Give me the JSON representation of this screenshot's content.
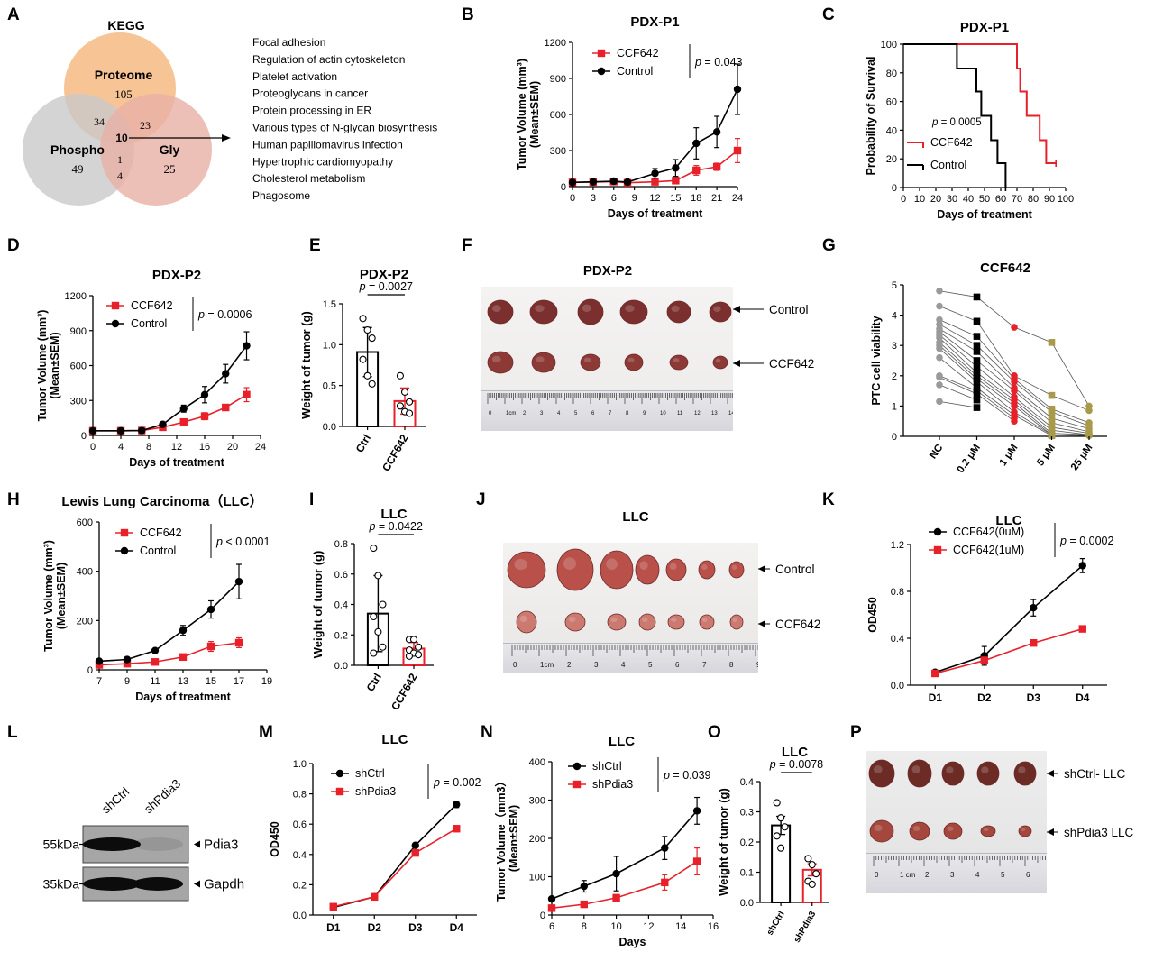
{
  "panels": {
    "A": {
      "letter": "A",
      "title": "KEGG",
      "venn": {
        "sets": [
          {
            "label": "Proteome",
            "count": "105",
            "color": "#f5b57a"
          },
          {
            "label": "Phospho",
            "count": "49",
            "color": "#c9c9c9"
          },
          {
            "label": "Gly",
            "count": "25",
            "color": "#e8b0a5"
          }
        ],
        "overlaps": {
          "proteome_phospho": "34",
          "proteome_gly": "23",
          "all": "10",
          "phospho_gly_top": "1",
          "phospho_gly_bottom": "4"
        }
      },
      "pathways": [
        "Focal adhesion",
        "Regulation of actin cytoskeleton",
        "Platelet activation",
        "Proteoglycans in cancer",
        "Protein processing in ER",
        "Various types of N-glycan biosynthesis",
        "Human papillomavirus infection",
        "Hypertrophic cardiomyopathy",
        "Cholesterol metabolism",
        "Phagosome"
      ]
    },
    "B": {
      "letter": "B"
    },
    "C": {
      "letter": "C"
    },
    "D": {
      "letter": "D"
    },
    "E": {
      "letter": "E"
    },
    "F": {
      "letter": "F",
      "title": "PDX-P2",
      "row_labels": [
        "Control",
        "CCF642"
      ],
      "ruler_labels": [
        "0",
        "1cm",
        "2",
        "3",
        "4",
        "5",
        "6",
        "7",
        "8",
        "9",
        "10",
        "11",
        "12",
        "13",
        "14"
      ]
    },
    "G": {
      "letter": "G"
    },
    "H": {
      "letter": "H"
    },
    "I": {
      "letter": "I"
    },
    "J": {
      "letter": "J",
      "title": "LLC",
      "row_labels": [
        "Control",
        "CCF642"
      ],
      "ruler_labels": [
        "0",
        "1cm",
        "2",
        "3",
        "4",
        "5",
        "6",
        "7",
        "8",
        "9"
      ]
    },
    "K": {
      "letter": "K"
    },
    "L": {
      "letter": "L",
      "lanes": [
        "shCtrl",
        "shPdia3"
      ],
      "bands": [
        {
          "mw": "55kDa",
          "protein": "Pdia3",
          "intensity": [
            1.0,
            0.1
          ]
        },
        {
          "mw": "35kDa",
          "protein": "Gapdh",
          "intensity": [
            1.0,
            1.0
          ]
        }
      ]
    },
    "M": {
      "letter": "M"
    },
    "N": {
      "letter": "N"
    },
    "O": {
      "letter": "O"
    },
    "P": {
      "letter": "P",
      "row_labels": [
        "shCtrl- LLC",
        "shPdia3 LLC"
      ],
      "ruler_labels": [
        "0",
        "1 cm",
        "2",
        "3",
        "4",
        "5",
        "6"
      ]
    }
  },
  "colors": {
    "control": "#000000",
    "treatment": "#e8202a",
    "olive": "#a89a4a",
    "grey_point": "#9a9a9a"
  },
  "chart_data": [
    {
      "panel": "B",
      "type": "line",
      "title": "PDX-P1",
      "xlabel": "Days of treatment",
      "ylabel": "Tumor Volume (mm³)",
      "ylabel2": "(Mean±SEM)",
      "xlim": [
        0,
        24
      ],
      "ylim": [
        0,
        1200
      ],
      "xticks": [
        0,
        3,
        6,
        9,
        12,
        15,
        18,
        21,
        24
      ],
      "yticks": [
        0,
        300,
        600,
        900,
        1200
      ],
      "p_text": "p = 0.043",
      "series": [
        {
          "name": "CCF642",
          "color": "#e8202a",
          "marker": "square",
          "x": [
            0,
            3,
            6,
            8,
            12,
            15,
            18,
            21,
            24
          ],
          "y": [
            35,
            38,
            42,
            32,
            40,
            50,
            135,
            165,
            300
          ],
          "err": [
            8,
            8,
            8,
            8,
            12,
            15,
            40,
            30,
            100
          ]
        },
        {
          "name": "Control",
          "color": "#000000",
          "marker": "circle",
          "x": [
            0,
            3,
            6,
            8,
            12,
            15,
            18,
            21,
            24
          ],
          "y": [
            35,
            40,
            45,
            38,
            110,
            155,
            360,
            455,
            810
          ],
          "err": [
            8,
            8,
            8,
            8,
            40,
            70,
            130,
            130,
            210
          ]
        }
      ]
    },
    {
      "panel": "C",
      "type": "line",
      "title": "PDX-P1",
      "xlabel": "Days of treatment",
      "ylabel": "Probability of Survival",
      "xlim": [
        0,
        100
      ],
      "ylim": [
        0,
        100
      ],
      "xticks": [
        0,
        10,
        20,
        30,
        40,
        50,
        60,
        70,
        80,
        90,
        100
      ],
      "yticks": [
        0,
        20,
        40,
        60,
        80,
        100
      ],
      "p_text": "p = 0.0005",
      "series": [
        {
          "name": "CCF642",
          "color": "#e8202a",
          "step": true,
          "x": [
            0,
            70,
            72,
            76,
            84,
            88,
            94
          ],
          "y": [
            100,
            83,
            67,
            50,
            33,
            17,
            17
          ]
        },
        {
          "name": "Control",
          "color": "#000000",
          "step": true,
          "x": [
            0,
            33,
            45,
            48,
            54,
            58,
            63
          ],
          "y": [
            100,
            83,
            67,
            50,
            33,
            17,
            0
          ]
        }
      ]
    },
    {
      "panel": "D",
      "type": "line",
      "title": "PDX-P2",
      "xlabel": "Days of treatment",
      "ylabel": "Tumor Volume (mm³)",
      "ylabel2": "(Mean±SEM)",
      "xlim": [
        0,
        24
      ],
      "ylim": [
        0,
        1200
      ],
      "xticks": [
        0,
        4,
        8,
        12,
        16,
        20,
        24
      ],
      "yticks": [
        0,
        300,
        600,
        900,
        1200
      ],
      "p_text": "p = 0.0006",
      "series": [
        {
          "name": "CCF642",
          "color": "#e8202a",
          "marker": "square",
          "x": [
            0,
            4,
            7,
            10,
            13,
            16,
            19,
            22
          ],
          "y": [
            40,
            40,
            42,
            70,
            115,
            165,
            240,
            350
          ],
          "err": [
            6,
            6,
            6,
            10,
            15,
            30,
            25,
            60
          ]
        },
        {
          "name": "Control",
          "color": "#000000",
          "marker": "circle",
          "x": [
            0,
            4,
            7,
            10,
            13,
            16,
            19,
            22
          ],
          "y": [
            40,
            40,
            42,
            95,
            230,
            350,
            530,
            770
          ],
          "err": [
            6,
            6,
            6,
            10,
            30,
            70,
            80,
            120
          ]
        }
      ]
    },
    {
      "panel": "E",
      "type": "bar",
      "title": "PDX-P2",
      "ylabel": "Weight of tumor (g)",
      "ylim": [
        0,
        1.5
      ],
      "yticks": [
        0.0,
        0.5,
        1.0,
        1.5
      ],
      "categories": [
        "Ctrl",
        "CCF642"
      ],
      "values": [
        0.91,
        0.31
      ],
      "err": [
        0.3,
        0.16
      ],
      "p_text": "p = 0.0027",
      "points": [
        [
          1.32,
          1.18,
          1.08,
          0.82,
          0.62,
          0.52
        ],
        [
          0.62,
          0.42,
          0.3,
          0.25,
          0.18,
          0.16
        ]
      ]
    },
    {
      "panel": "G",
      "type": "scatter",
      "title": "CCF642",
      "ylabel": "PTC cell viability",
      "ylim": [
        0,
        5
      ],
      "yticks": [
        0,
        1,
        2,
        3,
        4,
        5
      ],
      "categories": [
        "NC",
        "0.2 μM",
        "1 μM",
        "5 μM",
        "25 μM"
      ],
      "series": [
        {
          "name": "NC",
          "color": "#9a9a9a",
          "marker": "circle",
          "values": [
            4.8,
            4.3,
            3.85,
            3.7,
            3.55,
            3.45,
            3.35,
            3.25,
            3.1,
            3.0,
            2.9,
            2.6,
            2.0,
            1.95,
            1.7,
            1.15
          ]
        },
        {
          "name": "0.2 μM",
          "color": "#000000",
          "marker": "square",
          "values": [
            4.6,
            3.8,
            3.3,
            3.0,
            2.8,
            2.5,
            2.3,
            2.1,
            2.0,
            1.9,
            1.8,
            1.6,
            1.5,
            1.4,
            1.2,
            0.95
          ]
        },
        {
          "name": "1 μM",
          "color": "#e8202a",
          "marker": "circle",
          "values": [
            3.6,
            2.0,
            1.9,
            1.8,
            1.6,
            1.5,
            1.3,
            1.2,
            1.1,
            1.0,
            0.8,
            0.7,
            0.6,
            0.5
          ]
        },
        {
          "name": "5 μM",
          "color": "#a89a4a",
          "marker": "square",
          "values": [
            3.1,
            1.35,
            0.9,
            0.8,
            0.6,
            0.45,
            0.3,
            0.2,
            0.1,
            0.05,
            0.05,
            0.02
          ]
        },
        {
          "name": "25 μM",
          "color": "#a89a4a",
          "marker": "circle",
          "values": [
            1.0,
            0.85,
            0.45,
            0.35,
            0.25,
            0.15,
            0.1,
            0.05,
            0.05,
            0.02
          ]
        }
      ]
    },
    {
      "panel": "H",
      "type": "line",
      "title": "Lewis Lung Carcinoma（LLC）",
      "xlabel": "Days of treatment",
      "ylabel": "Tumor Volume (mm³)",
      "ylabel2": "(Mean±SEM)",
      "xlim": [
        7,
        19
      ],
      "ylim": [
        0,
        600
      ],
      "xticks": [
        7,
        9,
        11,
        13,
        15,
        17,
        19
      ],
      "yticks": [
        0,
        200,
        400,
        600
      ],
      "p_text": "p < 0.0001",
      "series": [
        {
          "name": "CCF642",
          "color": "#e8202a",
          "marker": "square",
          "x": [
            7,
            9,
            11,
            13,
            15,
            17
          ],
          "y": [
            20,
            25,
            32,
            52,
            95,
            110
          ],
          "err": [
            3,
            3,
            5,
            10,
            20,
            20
          ]
        },
        {
          "name": "Control",
          "color": "#000000",
          "marker": "circle",
          "x": [
            7,
            9,
            11,
            13,
            15,
            17
          ],
          "y": [
            35,
            42,
            78,
            160,
            245,
            358
          ],
          "err": [
            4,
            5,
            8,
            20,
            35,
            70
          ]
        }
      ]
    },
    {
      "panel": "I",
      "type": "bar",
      "title": "LLC",
      "ylabel": "Weight of tumor (g)",
      "ylim": [
        0,
        0.8
      ],
      "yticks": [
        0.0,
        0.2,
        0.4,
        0.6,
        0.8
      ],
      "categories": [
        "Ctrl",
        "CCF642"
      ],
      "values": [
        0.34,
        0.11
      ],
      "err": [
        0.25,
        0.04
      ],
      "p_text": "p = 0.0422",
      "points": [
        [
          0.77,
          0.59,
          0.4,
          0.32,
          0.22,
          0.12,
          0.08
        ],
        [
          0.17,
          0.17,
          0.12,
          0.1,
          0.08,
          0.07,
          0.06
        ]
      ]
    },
    {
      "panel": "K",
      "type": "line",
      "title": "LLC",
      "ylabel": "OD450",
      "ylim": [
        0,
        1.2
      ],
      "yticks": [
        0.0,
        0.4,
        0.8,
        1.2
      ],
      "categories": [
        "D1",
        "D2",
        "D3",
        "D4"
      ],
      "p_text": "p = 0.0002",
      "series": [
        {
          "name": "CCF642(0uM)",
          "color": "#000000",
          "marker": "circle",
          "values": [
            0.11,
            0.25,
            0.66,
            1.02
          ],
          "err": [
            0.01,
            0.08,
            0.07,
            0.06
          ]
        },
        {
          "name": "CCF642(1uM)",
          "color": "#e8202a",
          "marker": "square",
          "values": [
            0.1,
            0.21,
            0.36,
            0.48
          ],
          "err": [
            0.01,
            0.03,
            0.01,
            0.01
          ]
        }
      ]
    },
    {
      "panel": "M",
      "type": "line",
      "title": "LLC",
      "ylabel": "OD450",
      "ylim": [
        0,
        1.0
      ],
      "yticks": [
        0.0,
        0.2,
        0.4,
        0.6,
        0.8,
        1.0
      ],
      "categories": [
        "D1",
        "D2",
        "D3",
        "D4"
      ],
      "p_text": "p = 0.002",
      "series": [
        {
          "name": "shCtrl",
          "color": "#000000",
          "marker": "circle",
          "values": [
            0.05,
            0.12,
            0.46,
            0.73
          ],
          "err": [
            0.01,
            0.01,
            0.01,
            0.02
          ]
        },
        {
          "name": "shPdia3",
          "color": "#e8202a",
          "marker": "square",
          "values": [
            0.055,
            0.12,
            0.41,
            0.57
          ],
          "err": [
            0.01,
            0.01,
            0.01,
            0.01
          ]
        }
      ]
    },
    {
      "panel": "N",
      "type": "line",
      "title": "LLC",
      "xlabel": "Days",
      "ylabel": "Tumor Volume（mm3）",
      "ylabel2": "(Mean±SEM)",
      "xlim": [
        6,
        16
      ],
      "ylim": [
        0,
        400
      ],
      "xticks": [
        6,
        8,
        10,
        12,
        14,
        16
      ],
      "yticks": [
        0,
        100,
        200,
        300,
        400
      ],
      "p_text": "p = 0.039",
      "series": [
        {
          "name": "shCtrl",
          "color": "#000000",
          "marker": "circle",
          "x": [
            6,
            8,
            10,
            13,
            15
          ],
          "y": [
            42,
            75,
            108,
            175,
            272
          ],
          "err": [
            5,
            15,
            45,
            30,
            35
          ]
        },
        {
          "name": "shPdia3",
          "color": "#e8202a",
          "marker": "square",
          "x": [
            6,
            8,
            10,
            13,
            15
          ],
          "y": [
            18,
            28,
            45,
            85,
            140
          ],
          "err": [
            4,
            5,
            8,
            20,
            35
          ]
        }
      ]
    },
    {
      "panel": "O",
      "type": "bar",
      "title": "LLC",
      "ylabel": "Weight of tumor (g)",
      "ylim": [
        0,
        0.4
      ],
      "yticks": [
        0.0,
        0.1,
        0.2,
        0.3,
        0.4
      ],
      "categories": [
        "shCtrl",
        "shPdia3"
      ],
      "values": [
        0.255,
        0.108
      ],
      "err": [
        0.03,
        0.02
      ],
      "p_text": "p = 0.0078",
      "points": [
        [
          0.33,
          0.28,
          0.25,
          0.22,
          0.18
        ],
        [
          0.145,
          0.125,
          0.095,
          0.07,
          0.06
        ]
      ]
    }
  ]
}
